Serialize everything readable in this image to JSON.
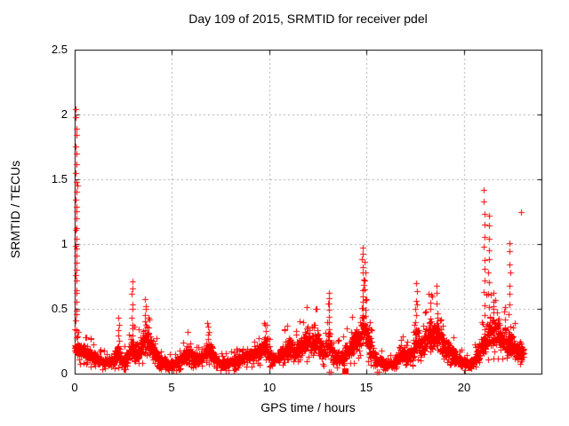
{
  "chart_data": {
    "type": "scatter",
    "title": "Day 109 of 2015, SRMTID for receiver pdel",
    "xlabel": "GPS time / hours",
    "ylabel": "SRMTID / TECUs",
    "xlim": [
      0,
      24
    ],
    "ylim": [
      0,
      2.5
    ],
    "x_ticks": [
      0,
      5,
      10,
      15,
      20
    ],
    "x_tick_labels": [
      "0",
      "5",
      "10",
      "15",
      "20"
    ],
    "y_ticks": [
      0,
      0.5,
      1,
      1.5,
      2,
      2.5
    ],
    "y_tick_labels": [
      "0",
      "0.5",
      "1",
      "1.5",
      "2",
      "2.5"
    ],
    "grid": true,
    "legend": "none",
    "marker": "plus",
    "marker_color": "#ff0000",
    "grid_color": "#b0b0b0",
    "axis_color": "#000000",
    "background_color": "#ffffff",
    "data_start_hour": 0,
    "data_end_hour": 23.1,
    "sample_step_hours": 0.008,
    "band_envelope": [
      [
        0.0,
        0.14,
        0.26
      ],
      [
        0.4,
        0.12,
        0.24
      ],
      [
        0.8,
        0.09,
        0.2
      ],
      [
        1.2,
        0.06,
        0.15
      ],
      [
        1.7,
        0.05,
        0.12
      ],
      [
        2.1,
        0.07,
        0.18
      ],
      [
        2.25,
        0.08,
        0.28
      ],
      [
        2.4,
        0.05,
        0.14
      ],
      [
        2.7,
        0.06,
        0.16
      ],
      [
        2.95,
        0.1,
        0.32
      ],
      [
        3.1,
        0.08,
        0.22
      ],
      [
        3.35,
        0.1,
        0.28
      ],
      [
        3.6,
        0.14,
        0.42
      ],
      [
        3.8,
        0.12,
        0.38
      ],
      [
        4.0,
        0.1,
        0.3
      ],
      [
        4.3,
        0.06,
        0.16
      ],
      [
        4.7,
        0.04,
        0.11
      ],
      [
        5.1,
        0.04,
        0.11
      ],
      [
        5.5,
        0.06,
        0.16
      ],
      [
        5.85,
        0.09,
        0.24
      ],
      [
        6.15,
        0.06,
        0.16
      ],
      [
        6.5,
        0.07,
        0.18
      ],
      [
        6.85,
        0.1,
        0.28
      ],
      [
        7.1,
        0.07,
        0.2
      ],
      [
        7.45,
        0.04,
        0.11
      ],
      [
        7.9,
        0.04,
        0.12
      ],
      [
        8.4,
        0.06,
        0.15
      ],
      [
        8.9,
        0.08,
        0.18
      ],
      [
        9.4,
        0.1,
        0.24
      ],
      [
        9.8,
        0.12,
        0.32
      ],
      [
        10.1,
        0.07,
        0.17
      ],
      [
        10.45,
        0.07,
        0.16
      ],
      [
        10.8,
        0.1,
        0.26
      ],
      [
        11.1,
        0.11,
        0.28
      ],
      [
        11.4,
        0.09,
        0.24
      ],
      [
        11.7,
        0.13,
        0.32
      ],
      [
        12.0,
        0.17,
        0.4
      ],
      [
        12.2,
        0.14,
        0.35
      ],
      [
        12.35,
        0.16,
        0.42
      ],
      [
        12.6,
        0.12,
        0.32
      ],
      [
        12.85,
        0.08,
        0.24
      ],
      [
        13.05,
        0.12,
        0.38
      ],
      [
        13.3,
        0.06,
        0.18
      ],
      [
        13.65,
        0.06,
        0.18
      ],
      [
        14.0,
        0.09,
        0.24
      ],
      [
        14.35,
        0.13,
        0.33
      ],
      [
        14.6,
        0.13,
        0.36
      ],
      [
        14.85,
        0.2,
        0.55
      ],
      [
        15.05,
        0.12,
        0.38
      ],
      [
        15.3,
        0.08,
        0.25
      ],
      [
        15.6,
        0.05,
        0.14
      ],
      [
        16.0,
        0.04,
        0.11
      ],
      [
        16.45,
        0.05,
        0.14
      ],
      [
        16.9,
        0.09,
        0.24
      ],
      [
        17.15,
        0.07,
        0.19
      ],
      [
        17.45,
        0.1,
        0.3
      ],
      [
        17.6,
        0.13,
        0.38
      ],
      [
        17.85,
        0.11,
        0.3
      ],
      [
        18.1,
        0.17,
        0.42
      ],
      [
        18.35,
        0.18,
        0.46
      ],
      [
        18.6,
        0.18,
        0.46
      ],
      [
        18.9,
        0.13,
        0.34
      ],
      [
        19.2,
        0.1,
        0.26
      ],
      [
        19.6,
        0.07,
        0.18
      ],
      [
        20.0,
        0.04,
        0.12
      ],
      [
        20.3,
        0.03,
        0.1
      ],
      [
        20.65,
        0.07,
        0.18
      ],
      [
        20.95,
        0.11,
        0.3
      ],
      [
        21.2,
        0.16,
        0.45
      ],
      [
        21.5,
        0.18,
        0.5
      ],
      [
        21.8,
        0.16,
        0.44
      ],
      [
        22.1,
        0.13,
        0.38
      ],
      [
        22.4,
        0.12,
        0.34
      ],
      [
        22.7,
        0.1,
        0.28
      ],
      [
        22.95,
        0.1,
        0.26
      ],
      [
        23.1,
        0.09,
        0.2
      ]
    ],
    "spike_columns": [
      [
        0.07,
        0.28,
        2.04,
        26
      ],
      [
        0.12,
        0.3,
        1.45,
        8
      ],
      [
        2.25,
        0.15,
        0.43,
        7
      ],
      [
        2.95,
        0.18,
        0.71,
        11
      ],
      [
        3.62,
        0.2,
        0.52,
        10
      ],
      [
        9.8,
        0.2,
        0.38,
        5
      ],
      [
        13.05,
        0.3,
        0.62,
        8
      ],
      [
        14.82,
        0.35,
        0.97,
        14
      ],
      [
        14.95,
        0.3,
        0.86,
        9
      ],
      [
        15.15,
        0.15,
        0.4,
        6
      ],
      [
        17.55,
        0.2,
        0.7,
        9
      ],
      [
        18.3,
        0.25,
        0.61,
        7
      ],
      [
        18.62,
        0.25,
        0.68,
        7
      ],
      [
        21.05,
        0.35,
        1.42,
        13
      ],
      [
        21.3,
        0.35,
        1.22,
        11
      ],
      [
        21.55,
        0.25,
        0.62,
        8
      ],
      [
        22.35,
        0.3,
        1.01,
        10
      ]
    ],
    "isolated_points": [
      [
        22.95,
        1.25
      ]
    ],
    "near_axis_plus_points": [
      [
        13.07,
        0.012
      ],
      [
        13.17,
        0.012
      ],
      [
        15.55,
        0.012
      ],
      [
        15.65,
        0.012
      ]
    ],
    "square_points": [
      [
        13.88,
        0.02
      ]
    ]
  }
}
